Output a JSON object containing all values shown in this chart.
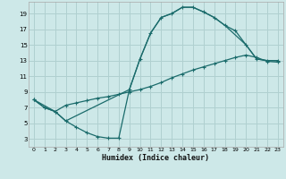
{
  "xlabel": "Humidex (Indice chaleur)",
  "bg_color": "#cde8e8",
  "grid_color": "#b0d0d0",
  "line_color": "#1a6b6b",
  "xlim": [
    -0.5,
    23.5
  ],
  "ylim": [
    2.0,
    20.5
  ],
  "xticks": [
    0,
    1,
    2,
    3,
    4,
    5,
    6,
    7,
    8,
    9,
    10,
    11,
    12,
    13,
    14,
    15,
    16,
    17,
    18,
    19,
    20,
    21,
    22,
    23
  ],
  "yticks": [
    3,
    5,
    7,
    9,
    11,
    13,
    15,
    17,
    19
  ],
  "curve1_x": [
    0,
    1,
    2,
    3,
    4,
    5,
    6,
    7,
    8,
    9,
    10,
    11,
    12,
    13,
    14,
    15,
    16,
    17,
    18,
    19,
    20,
    21,
    22,
    23
  ],
  "curve1_y": [
    8.0,
    7.0,
    6.5,
    5.3,
    4.5,
    3.8,
    3.3,
    3.1,
    3.1,
    9.3,
    13.2,
    16.5,
    18.5,
    19.0,
    19.8,
    19.8,
    19.2,
    18.5,
    17.5,
    16.8,
    15.0,
    13.2,
    13.0,
    13.0
  ],
  "curve2_x": [
    0,
    1,
    2,
    3,
    4,
    5,
    6,
    7,
    8,
    9,
    10,
    11,
    12,
    13,
    14,
    15,
    16,
    17,
    18,
    19,
    20,
    21,
    22,
    23
  ],
  "curve2_y": [
    8.0,
    7.0,
    6.5,
    7.3,
    7.6,
    7.9,
    8.2,
    8.4,
    8.7,
    9.0,
    9.3,
    9.7,
    10.2,
    10.8,
    11.3,
    11.8,
    12.2,
    12.6,
    13.0,
    13.4,
    13.7,
    13.4,
    12.9,
    12.8
  ],
  "curve3_x": [
    0,
    2,
    3,
    9,
    10,
    11,
    12,
    13,
    14,
    15,
    16,
    17,
    18,
    20,
    21,
    22,
    23
  ],
  "curve3_y": [
    8.0,
    6.5,
    5.3,
    9.3,
    13.2,
    16.5,
    18.5,
    19.0,
    19.8,
    19.8,
    19.2,
    18.5,
    17.5,
    15.0,
    13.2,
    13.0,
    13.0
  ]
}
